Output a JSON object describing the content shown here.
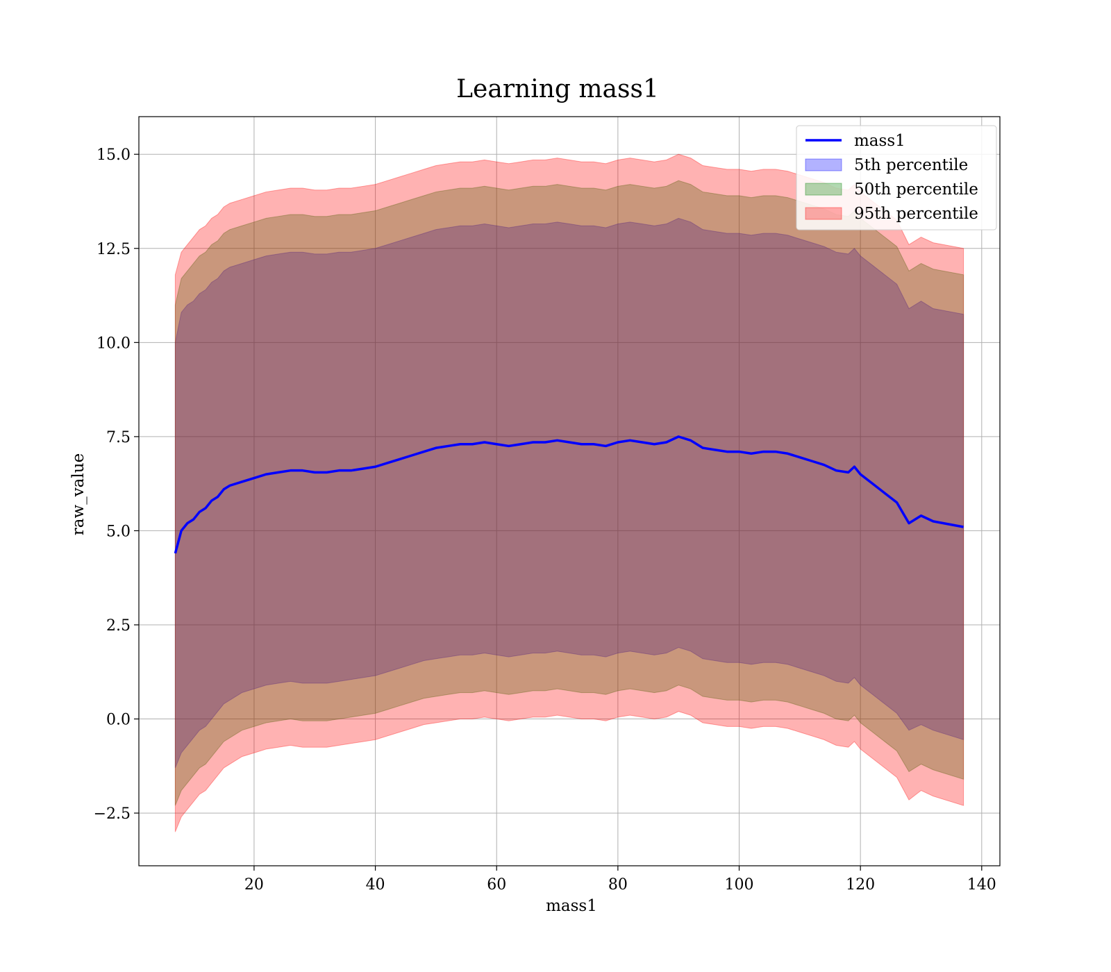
{
  "chart_data": {
    "type": "area",
    "title": "Learning mass1",
    "xlabel": "mass1",
    "ylabel": "raw_value",
    "xlim": [
      1,
      143
    ],
    "ylim": [
      -3.9,
      16.0
    ],
    "x_ticks": [
      20,
      40,
      60,
      80,
      100,
      120,
      140
    ],
    "x_tick_labels": [
      "20",
      "40",
      "60",
      "80",
      "100",
      "120",
      "140"
    ],
    "y_ticks": [
      -2.5,
      0.0,
      2.5,
      5.0,
      7.5,
      10.0,
      12.5,
      15.0
    ],
    "y_tick_labels": [
      "−2.5",
      "0.0",
      "2.5",
      "5.0",
      "7.5",
      "10.0",
      "12.5",
      "15.0"
    ],
    "grid": true,
    "legend_position": "top-right",
    "legend": {
      "items": [
        {
          "label": "mass1",
          "kind": "line",
          "color": "#0000ff"
        },
        {
          "label": "5th percentile",
          "kind": "patch",
          "color": "#0000ff"
        },
        {
          "label": "50th percentile",
          "kind": "patch",
          "color": "#008000"
        },
        {
          "label": "95th percentile",
          "kind": "patch",
          "color": "#ff0000"
        }
      ]
    },
    "colors": {
      "line": "#0000ff",
      "band_5th": "#0000ff",
      "band_50th": "#008000",
      "band_95th": "#ff0000",
      "band_alpha": 0.3
    },
    "x": [
      7,
      8,
      9,
      10,
      11,
      12,
      13,
      14,
      15,
      16,
      18,
      20,
      22,
      24,
      26,
      28,
      30,
      32,
      34,
      36,
      38,
      40,
      42,
      44,
      46,
      48,
      50,
      52,
      54,
      56,
      58,
      60,
      62,
      64,
      66,
      68,
      70,
      72,
      74,
      76,
      78,
      80,
      82,
      84,
      86,
      88,
      90,
      92,
      94,
      96,
      98,
      100,
      102,
      104,
      106,
      108,
      110,
      112,
      114,
      116,
      118,
      119,
      120,
      122,
      124,
      126,
      128,
      130,
      132,
      137
    ],
    "series": [
      {
        "name": "mass1",
        "values": [
          4.4,
          5.0,
          5.2,
          5.3,
          5.5,
          5.6,
          5.8,
          5.9,
          6.1,
          6.2,
          6.3,
          6.4,
          6.5,
          6.55,
          6.6,
          6.6,
          6.55,
          6.55,
          6.6,
          6.6,
          6.65,
          6.7,
          6.8,
          6.9,
          7.0,
          7.1,
          7.2,
          7.25,
          7.3,
          7.3,
          7.35,
          7.3,
          7.25,
          7.3,
          7.35,
          7.35,
          7.4,
          7.35,
          7.3,
          7.3,
          7.25,
          7.35,
          7.4,
          7.35,
          7.3,
          7.35,
          7.5,
          7.4,
          7.2,
          7.15,
          7.1,
          7.1,
          7.05,
          7.1,
          7.1,
          7.05,
          6.95,
          6.85,
          6.75,
          6.6,
          6.55,
          6.7,
          6.5,
          6.25,
          6.0,
          5.75,
          5.2,
          5.4,
          5.25,
          5.1
        ]
      },
      {
        "name": "5th percentile",
        "lower": [
          -1.3,
          -0.9,
          -0.7,
          -0.5,
          -0.3,
          -0.2,
          0.0,
          0.2,
          0.4,
          0.5,
          0.7,
          0.8,
          0.9,
          0.95,
          1.0,
          0.95,
          0.95,
          0.95,
          1.0,
          1.05,
          1.1,
          1.15,
          1.25,
          1.35,
          1.45,
          1.55,
          1.6,
          1.65,
          1.7,
          1.7,
          1.75,
          1.7,
          1.65,
          1.7,
          1.75,
          1.75,
          1.8,
          1.75,
          1.7,
          1.7,
          1.65,
          1.75,
          1.8,
          1.75,
          1.7,
          1.75,
          1.9,
          1.8,
          1.6,
          1.55,
          1.5,
          1.5,
          1.45,
          1.5,
          1.5,
          1.45,
          1.35,
          1.25,
          1.15,
          1.0,
          0.95,
          1.1,
          0.9,
          0.65,
          0.4,
          0.15,
          -0.3,
          -0.15,
          -0.3,
          -0.55
        ],
        "upper": [
          10.0,
          10.8,
          11.0,
          11.1,
          11.3,
          11.4,
          11.6,
          11.7,
          11.9,
          12.0,
          12.1,
          12.2,
          12.3,
          12.35,
          12.4,
          12.4,
          12.35,
          12.35,
          12.4,
          12.4,
          12.45,
          12.5,
          12.6,
          12.7,
          12.8,
          12.9,
          13.0,
          13.05,
          13.1,
          13.1,
          13.15,
          13.1,
          13.05,
          13.1,
          13.15,
          13.15,
          13.2,
          13.15,
          13.1,
          13.1,
          13.05,
          13.15,
          13.2,
          13.15,
          13.1,
          13.15,
          13.3,
          13.2,
          13.0,
          12.95,
          12.9,
          12.9,
          12.85,
          12.9,
          12.9,
          12.85,
          12.75,
          12.65,
          12.55,
          12.4,
          12.35,
          12.5,
          12.3,
          12.05,
          11.8,
          11.55,
          10.9,
          11.1,
          10.9,
          10.75
        ]
      },
      {
        "name": "50th percentile",
        "lower": [
          -2.3,
          -1.9,
          -1.7,
          -1.5,
          -1.3,
          -1.2,
          -1.0,
          -0.8,
          -0.6,
          -0.5,
          -0.3,
          -0.2,
          -0.1,
          -0.05,
          0.0,
          -0.05,
          -0.05,
          -0.05,
          0.0,
          0.05,
          0.1,
          0.15,
          0.25,
          0.35,
          0.45,
          0.55,
          0.6,
          0.65,
          0.7,
          0.7,
          0.75,
          0.7,
          0.65,
          0.7,
          0.75,
          0.75,
          0.8,
          0.75,
          0.7,
          0.7,
          0.65,
          0.75,
          0.8,
          0.75,
          0.7,
          0.75,
          0.9,
          0.8,
          0.6,
          0.55,
          0.5,
          0.5,
          0.45,
          0.5,
          0.5,
          0.45,
          0.35,
          0.25,
          0.15,
          0.0,
          -0.05,
          0.1,
          -0.1,
          -0.35,
          -0.6,
          -0.85,
          -1.4,
          -1.2,
          -1.35,
          -1.6
        ],
        "upper": [
          11.0,
          11.7,
          11.9,
          12.1,
          12.3,
          12.4,
          12.6,
          12.7,
          12.9,
          13.0,
          13.1,
          13.2,
          13.3,
          13.35,
          13.4,
          13.4,
          13.35,
          13.35,
          13.4,
          13.4,
          13.45,
          13.5,
          13.6,
          13.7,
          13.8,
          13.9,
          14.0,
          14.05,
          14.1,
          14.1,
          14.15,
          14.1,
          14.05,
          14.1,
          14.15,
          14.15,
          14.2,
          14.15,
          14.1,
          14.1,
          14.05,
          14.15,
          14.2,
          14.15,
          14.1,
          14.15,
          14.3,
          14.2,
          14.0,
          13.95,
          13.9,
          13.9,
          13.85,
          13.9,
          13.9,
          13.85,
          13.75,
          13.65,
          13.55,
          13.4,
          13.35,
          13.5,
          13.3,
          13.05,
          12.8,
          12.55,
          11.9,
          12.1,
          11.95,
          11.8
        ]
      },
      {
        "name": "95th percentile",
        "lower": [
          -3.0,
          -2.6,
          -2.4,
          -2.2,
          -2.0,
          -1.9,
          -1.7,
          -1.5,
          -1.3,
          -1.2,
          -1.0,
          -0.9,
          -0.8,
          -0.75,
          -0.7,
          -0.75,
          -0.75,
          -0.75,
          -0.7,
          -0.65,
          -0.6,
          -0.55,
          -0.45,
          -0.35,
          -0.25,
          -0.15,
          -0.1,
          -0.05,
          0.0,
          0.0,
          0.05,
          0.0,
          -0.05,
          0.0,
          0.05,
          0.05,
          0.1,
          0.05,
          0.0,
          0.0,
          -0.05,
          0.05,
          0.1,
          0.05,
          0.0,
          0.05,
          0.2,
          0.1,
          -0.1,
          -0.15,
          -0.2,
          -0.2,
          -0.25,
          -0.2,
          -0.2,
          -0.25,
          -0.35,
          -0.45,
          -0.55,
          -0.7,
          -0.75,
          -0.6,
          -0.8,
          -1.05,
          -1.3,
          -1.55,
          -2.15,
          -1.9,
          -2.05,
          -2.3
        ],
        "upper": [
          11.8,
          12.4,
          12.6,
          12.8,
          13.0,
          13.1,
          13.3,
          13.4,
          13.6,
          13.7,
          13.8,
          13.9,
          14.0,
          14.05,
          14.1,
          14.1,
          14.05,
          14.05,
          14.1,
          14.1,
          14.15,
          14.2,
          14.3,
          14.4,
          14.5,
          14.6,
          14.7,
          14.75,
          14.8,
          14.8,
          14.85,
          14.8,
          14.75,
          14.8,
          14.85,
          14.85,
          14.9,
          14.85,
          14.8,
          14.8,
          14.75,
          14.85,
          14.9,
          14.85,
          14.8,
          14.85,
          15.0,
          14.9,
          14.7,
          14.65,
          14.6,
          14.6,
          14.55,
          14.6,
          14.6,
          14.55,
          14.45,
          14.35,
          14.25,
          14.1,
          14.05,
          14.2,
          14.0,
          13.75,
          13.5,
          13.25,
          12.6,
          12.8,
          12.65,
          12.5
        ]
      }
    ]
  }
}
